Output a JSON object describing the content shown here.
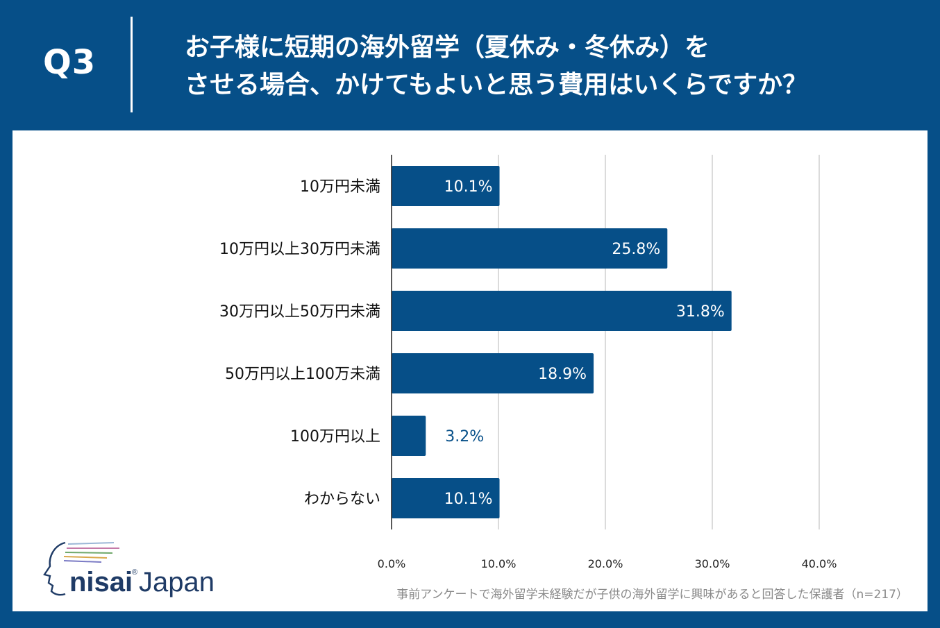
{
  "header": {
    "question_number": "Q3",
    "title_line1": "お子様に短期の海外留学（夏休み・冬休み）を",
    "title_line2": "させる場合、かけてもよいと思う費用はいくらですか？"
  },
  "chart_data": {
    "type": "bar",
    "orientation": "horizontal",
    "categories": [
      "10万円未満",
      "10万円以上30万円未満",
      "30万円以上50万円未満",
      "50万円以上100万未満",
      "100万円以上",
      "わからない"
    ],
    "values": [
      10.1,
      25.8,
      31.8,
      18.9,
      3.2,
      10.1
    ],
    "value_labels": [
      "10.1%",
      "25.8%",
      "31.8%",
      "18.9%",
      "3.2%",
      "10.1%"
    ],
    "x_ticks": [
      "0.0%",
      "10.0%",
      "20.0%",
      "30.0%",
      "40.0%"
    ],
    "xlim": [
      0,
      40
    ],
    "grid": true,
    "colors": {
      "bar": "#064f88",
      "label_inside": "#ffffff",
      "label_outside": "#064f88"
    }
  },
  "footnote": "事前アンケートで海外留学未経験だが子供の海外留学に興味があると回答した保護者（n=217）",
  "logo": {
    "text_brand": "nisai",
    "text_suffix": "Japan",
    "registered_mark": "®"
  },
  "colors": {
    "background": "#064f88",
    "panel": "#ffffff",
    "gridline": "#cfcfcf",
    "axis": "#222222"
  }
}
